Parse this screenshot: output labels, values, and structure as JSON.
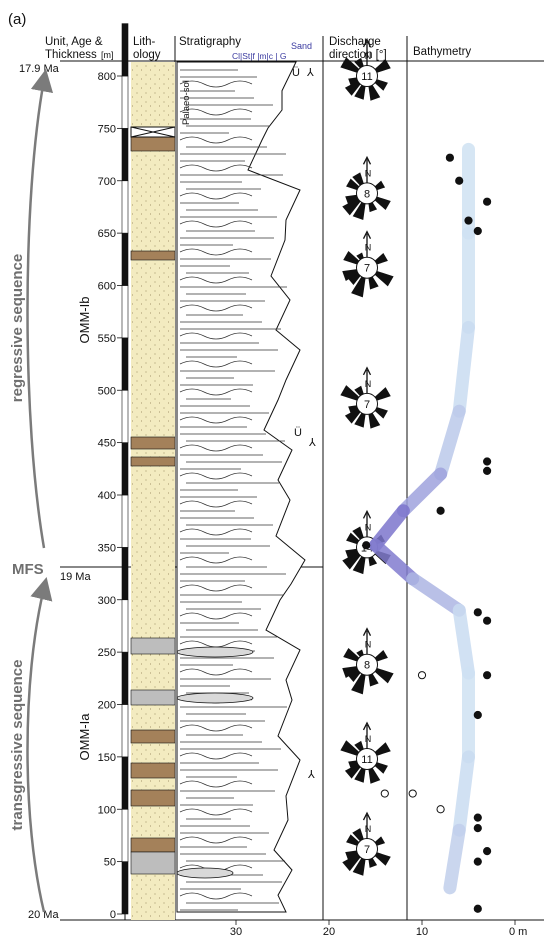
{
  "panel_label": "(a)",
  "headers": {
    "unit_line1": "Unit, Age &",
    "unit_line2": "Thickness",
    "unit_unit": "[m]",
    "litho_line1": "Lith-",
    "litho_line2": "ology",
    "strat": "Stratigraphy",
    "sand": "Sand",
    "grain": "Cl|St|f |m|c | G",
    "disch_line1": "Discharge",
    "disch_line2": "direction [°]",
    "bathy": "Bathymetry"
  },
  "ages": {
    "top": "17.9 Ma",
    "mfs": "19 Ma",
    "bottom": "20 Ma"
  },
  "labels": {
    "regressive": "regressive sequence",
    "transgressive": "transgressive sequence",
    "mfs": "MFS",
    "omm_ib": "OMM-Ib",
    "omm_ia": "OMM-Ia",
    "palaeosol": "Palaeo-sol"
  },
  "thickness_ticks": [
    "0",
    "50",
    "100",
    "150",
    "200",
    "250",
    "300",
    "350",
    "400",
    "450",
    "500",
    "550",
    "600",
    "650",
    "700",
    "750",
    "800"
  ],
  "bathy_axis": {
    "ticks": [
      "30",
      "20",
      "10",
      "0 m"
    ],
    "values": [
      30,
      20,
      10,
      0
    ],
    "max": 33
  },
  "rose_diagrams": [
    {
      "height_m": 800,
      "count": "11"
    },
    {
      "height_m": 688,
      "count": "8"
    },
    {
      "height_m": 617,
      "count": "7"
    },
    {
      "height_m": 487,
      "count": "7"
    },
    {
      "height_m": 350,
      "count": "14"
    },
    {
      "height_m": 238,
      "count": "8"
    },
    {
      "height_m": 148,
      "count": "11"
    },
    {
      "height_m": 62,
      "count": "7"
    }
  ],
  "bathymetry_points": [
    {
      "height_m": 722,
      "depth_m": 7,
      "filled": true
    },
    {
      "height_m": 700,
      "depth_m": 6,
      "filled": true
    },
    {
      "height_m": 680,
      "depth_m": 3,
      "filled": true
    },
    {
      "height_m": 662,
      "depth_m": 5,
      "filled": true
    },
    {
      "height_m": 652,
      "depth_m": 4,
      "filled": true
    },
    {
      "height_m": 432,
      "depth_m": 3,
      "filled": true
    },
    {
      "height_m": 423,
      "depth_m": 3,
      "filled": true
    },
    {
      "height_m": 385,
      "depth_m": 8,
      "filled": true
    },
    {
      "height_m": 352,
      "depth_m": 16,
      "filled": true
    },
    {
      "height_m": 288,
      "depth_m": 4,
      "filled": true
    },
    {
      "height_m": 280,
      "depth_m": 3,
      "filled": true
    },
    {
      "height_m": 228,
      "depth_m": 10,
      "filled": false
    },
    {
      "height_m": 228,
      "depth_m": 3,
      "filled": true
    },
    {
      "height_m": 190,
      "depth_m": 4,
      "filled": true
    },
    {
      "height_m": 115,
      "depth_m": 14,
      "filled": false
    },
    {
      "height_m": 115,
      "depth_m": 11,
      "filled": false
    },
    {
      "height_m": 100,
      "depth_m": 8,
      "filled": false
    },
    {
      "height_m": 92,
      "depth_m": 4,
      "filled": true
    },
    {
      "height_m": 82,
      "depth_m": 4,
      "filled": true
    },
    {
      "height_m": 60,
      "depth_m": 3,
      "filled": true
    },
    {
      "height_m": 50,
      "depth_m": 4,
      "filled": true
    },
    {
      "height_m": 5,
      "depth_m": 4,
      "filled": true
    }
  ],
  "bathymetry_curve": [
    {
      "height_m": 730,
      "depth_m": 5
    },
    {
      "height_m": 650,
      "depth_m": 5
    },
    {
      "height_m": 560,
      "depth_m": 5
    },
    {
      "height_m": 480,
      "depth_m": 6
    },
    {
      "height_m": 420,
      "depth_m": 8
    },
    {
      "height_m": 385,
      "depth_m": 12
    },
    {
      "height_m": 352,
      "depth_m": 15
    },
    {
      "height_m": 320,
      "depth_m": 11
    },
    {
      "height_m": 290,
      "depth_m": 6
    },
    {
      "height_m": 230,
      "depth_m": 5
    },
    {
      "height_m": 150,
      "depth_m": 5
    },
    {
      "height_m": 80,
      "depth_m": 6
    },
    {
      "height_m": 25,
      "depth_m": 7
    }
  ],
  "colors": {
    "sand": "#f3ebc0",
    "mud": "#a4815a",
    "gravel": "#bdbdbd",
    "bathy_shallow": "#cfe2f3",
    "bathy_deep": "#6f63c6",
    "arrow_grey": "#7b7b7b"
  }
}
